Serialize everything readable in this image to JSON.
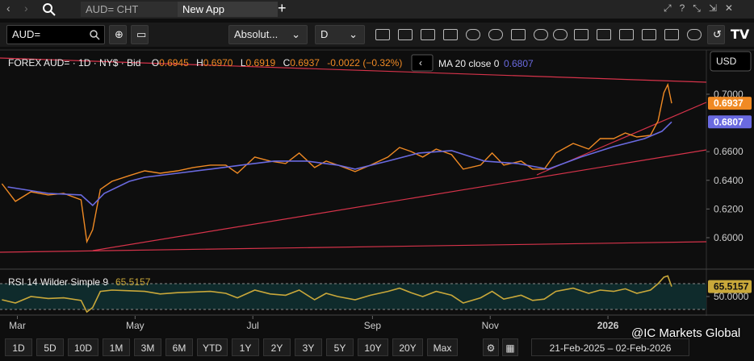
{
  "ui": {
    "tabs": [
      "AUD= CHT",
      "New App"
    ],
    "symbol_input": "AUD=",
    "mode": "Absolut...",
    "interval": "D",
    "currency": "USD",
    "ranges": [
      "1D",
      "5D",
      "10D",
      "1M",
      "3M",
      "6M",
      "YTD",
      "1Y",
      "2Y",
      "3Y",
      "5Y",
      "10Y",
      "20Y",
      "Max"
    ],
    "date_range": "21-Feb-2025  –  02-Feb-2026",
    "watermark": "@IC Markets Global"
  },
  "chart_data": [
    {
      "type": "line",
      "title": "FOREX AUD= · 1D · NY$ · Bid",
      "header_fields": [
        {
          "key": "O",
          "value": "0.6945"
        },
        {
          "key": "H",
          "value": "0.6970"
        },
        {
          "key": "L",
          "value": "0.6919"
        },
        {
          "key": "C",
          "value": "0.6937"
        }
      ],
      "change": "-0.0022 (−0.32%)",
      "x": [
        0,
        7,
        15,
        24,
        32,
        41,
        44,
        47,
        51,
        57,
        66,
        74,
        82,
        91,
        99,
        108,
        116,
        122,
        131,
        139,
        147,
        154,
        162,
        168,
        174,
        183,
        191,
        200,
        206,
        212,
        218,
        225,
        233,
        239,
        248,
        254,
        260,
        269,
        275,
        281,
        287,
        296,
        304,
        310,
        317,
        323,
        329,
        336,
        340,
        343,
        345,
        347
      ],
      "xlim": [
        -1,
        365
      ],
      "xticks": [
        {
          "value": 8,
          "label": "Mar"
        },
        {
          "value": 69,
          "label": "May"
        },
        {
          "value": 130,
          "label": "Jul"
        },
        {
          "value": 192,
          "label": "Sep"
        },
        {
          "value": 253,
          "label": "Nov"
        },
        {
          "value": 314,
          "label": "2026"
        }
      ],
      "ylim": [
        0.5792,
        0.7275
      ],
      "yticks": [
        {
          "value": 0.7,
          "label": "0.7000"
        },
        {
          "value": 0.66,
          "label": "0.6600"
        },
        {
          "value": 0.64,
          "label": "0.6400"
        },
        {
          "value": 0.62,
          "label": "0.6200"
        },
        {
          "value": 0.6,
          "label": "0.6000"
        }
      ],
      "series": [
        {
          "color": "#f08a24",
          "values": [
            0.6376,
            0.6253,
            0.632,
            0.6298,
            0.6309,
            0.6264,
            0.5972,
            0.6056,
            0.6337,
            0.6393,
            0.6433,
            0.6466,
            0.6449,
            0.6466,
            0.6489,
            0.6506,
            0.6506,
            0.6449,
            0.6562,
            0.6534,
            0.6517,
            0.659,
            0.6489,
            0.6534,
            0.6506,
            0.6461,
            0.6506,
            0.6562,
            0.6629,
            0.6601,
            0.6562,
            0.6618,
            0.6579,
            0.6478,
            0.6506,
            0.659,
            0.6506,
            0.6534,
            0.6478,
            0.6478,
            0.659,
            0.6657,
            0.6618,
            0.6691,
            0.6691,
            0.673,
            0.6702,
            0.6713,
            0.6815,
            0.7011,
            0.7067,
            0.6937
          ]
        },
        {
          "name": "MA 20 close 0",
          "color": "#6a6ae0",
          "x": [
            3,
            24,
            41,
            47,
            53,
            66,
            74,
            91,
            108,
            124,
            141,
            158,
            174,
            183,
            200,
            216,
            233,
            250,
            267,
            283,
            300,
            317,
            333,
            342,
            347
          ],
          "values": [
            0.6354,
            0.6309,
            0.6298,
            0.6225,
            0.6309,
            0.6393,
            0.6421,
            0.6449,
            0.6478,
            0.6506,
            0.6534,
            0.6534,
            0.6506,
            0.6478,
            0.6534,
            0.659,
            0.6607,
            0.6534,
            0.6517,
            0.6478,
            0.6562,
            0.6635,
            0.6691,
            0.6742,
            0.6807
          ]
        }
      ]
    },
    {
      "type": "line",
      "title": "RSI 14 Wilder Simple 9",
      "x": [
        0,
        7,
        15,
        24,
        32,
        41,
        44,
        47,
        51,
        57,
        66,
        74,
        82,
        91,
        99,
        108,
        116,
        122,
        131,
        139,
        147,
        154,
        162,
        168,
        174,
        183,
        191,
        200,
        206,
        212,
        218,
        225,
        233,
        239,
        248,
        254,
        260,
        269,
        275,
        281,
        287,
        296,
        304,
        310,
        317,
        323,
        329,
        336,
        340,
        343,
        345,
        347
      ],
      "xlim": [
        -1,
        365
      ],
      "ylim": [
        25,
        87.5
      ],
      "yticks": [
        {
          "value": 50,
          "label": "50.0000"
        }
      ],
      "levels": [
        30,
        70
      ],
      "series": [
        {
          "color": "#c9a83a",
          "values": [
            45,
            40,
            50,
            47,
            48,
            44,
            26,
            33,
            58,
            60,
            59,
            58,
            54,
            56,
            57,
            58,
            55,
            48,
            60,
            54,
            52,
            60,
            45,
            55,
            50,
            45,
            52,
            58,
            63,
            56,
            50,
            58,
            52,
            40,
            48,
            58,
            46,
            52,
            44,
            46,
            58,
            63,
            55,
            60,
            58,
            62,
            55,
            60,
            70,
            80,
            82,
            65.5157
          ]
        }
      ]
    }
  ]
}
